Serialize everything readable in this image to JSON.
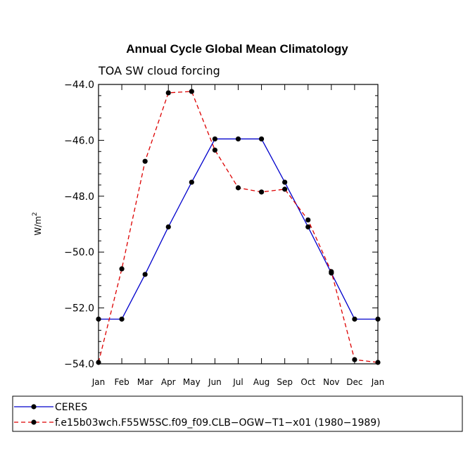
{
  "chart_data": {
    "type": "line",
    "title": "Annual Cycle Global Mean Climatology",
    "subtitle": "TOA SW cloud forcing",
    "xlabel": "",
    "ylabel": "W/m",
    "ylabel_superscript": "2",
    "categories": [
      "Jan",
      "Feb",
      "Mar",
      "Apr",
      "May",
      "Jun",
      "Jul",
      "Aug",
      "Sep",
      "Oct",
      "Nov",
      "Dec",
      "Jan"
    ],
    "ylim": [
      -54.0,
      -43.5
    ],
    "yticks": [
      -44.0,
      -46.0,
      -48.0,
      -50.0,
      -52.0,
      -54.0
    ],
    "ytick_labels": [
      "−44.0",
      "−46.0",
      "−48.0",
      "−50.0",
      "−52.0",
      "−54.0"
    ],
    "grid": false,
    "legend_position": "bottom",
    "series": [
      {
        "name": "CERES",
        "color": "#0000cc",
        "dash": "solid",
        "values": [
          -52.4,
          -52.4,
          -50.8,
          -49.1,
          -47.5,
          -45.95,
          -45.95,
          -45.95,
          -47.5,
          -49.1,
          -50.75,
          -52.4,
          -52.4
        ]
      },
      {
        "name": "f.e15b03wch.F55W5SC.f09_f09.CLB−OGW−T1−x01 (1980−1989)",
        "color": "#dd0000",
        "dash": "dashed",
        "values": [
          -53.95,
          -50.6,
          -46.75,
          -44.3,
          -44.25,
          -46.35,
          -47.7,
          -47.85,
          -47.75,
          -48.85,
          -50.7,
          -53.85,
          -53.95
        ]
      }
    ]
  }
}
